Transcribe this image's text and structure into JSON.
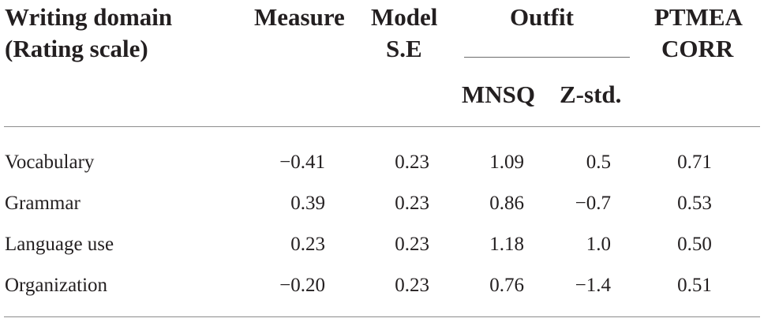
{
  "table": {
    "headers": {
      "domain_line1": "Writing domain",
      "domain_line2": "(Rating scale)",
      "measure": "Measure",
      "model_line1": "Model",
      "model_line2": "S.E",
      "outfit": "Outfit",
      "mnsq": "MNSQ",
      "zstd": "Z-std.",
      "ptmea_line1": "PTMEA",
      "ptmea_line2": "CORR"
    },
    "rows": [
      {
        "domain": "Vocabulary",
        "measure": "−0.41",
        "se": "0.23",
        "mnsq": "1.09",
        "zstd": "0.5",
        "ptmea": "0.71"
      },
      {
        "domain": "Grammar",
        "measure": "0.39",
        "se": "0.23",
        "mnsq": "0.86",
        "zstd": "−0.7",
        "ptmea": "0.53"
      },
      {
        "domain": "Language use",
        "measure": "0.23",
        "se": "0.23",
        "mnsq": "1.18",
        "zstd": "1.0",
        "ptmea": "0.50"
      },
      {
        "domain": "Organization",
        "measure": "−0.20",
        "se": "0.23",
        "mnsq": "0.76",
        "zstd": "−1.4",
        "ptmea": "0.51"
      }
    ]
  }
}
